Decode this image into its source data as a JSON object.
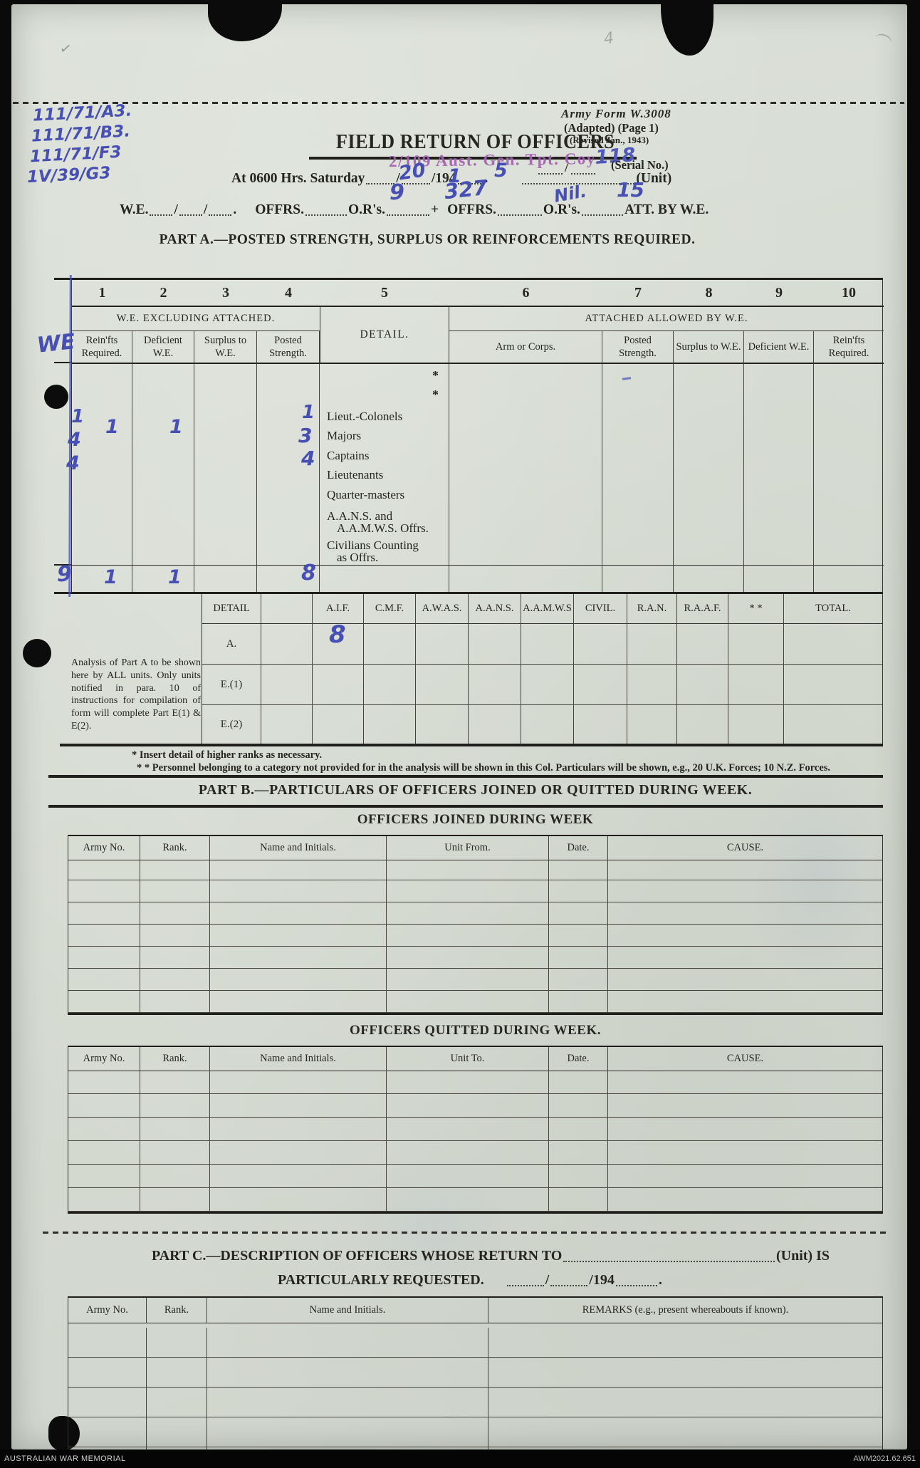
{
  "colors": {
    "paper": "#d8dcd3",
    "ink": "#26251f",
    "handwriting": "#4750b2",
    "stamp": "#a05fae"
  },
  "scan": {
    "footer_left": "AUSTRALIAN WAR MEMORIAL",
    "footer_right": "AWM2021.62.651"
  },
  "marks": {
    "check": "✓",
    "scribble": "4"
  },
  "header": {
    "form_number": "Army Form W.3008",
    "form_adapted": "(Adapted)  (Page 1)",
    "form_revised": "(Revised Jan., 1943)",
    "title": "FIELD RETURN OF OFFICERS",
    "stamp_unit": "2/109 Aust. Gen. Tpt. Coy.",
    "serial_label": "(Serial No.)",
    "date_prefix": "At 0600 Hrs. Saturday",
    "slash": "/",
    "year_prefix": "/194",
    "period": ".",
    "unit_label": "(Unit)",
    "we_label": "W.E.",
    "offrs_label": "OFFRS.",
    "ors_label": "O.R's.",
    "plus": "+",
    "att_label": "ATT. BY W.E."
  },
  "handwriting": {
    "refs": [
      "111/71/A3.",
      "111/71/B3.",
      "111/71/F3",
      "1V/39/G3"
    ],
    "serial": "118",
    "day": "20",
    "month": "1",
    "year": "5",
    "offrs": "9",
    "ors": "327",
    "att_offrs": "Nil.",
    "att_ors": "15",
    "we_label": "WE",
    "margin": [
      "1",
      "4",
      "4"
    ],
    "col1": "1",
    "col2": "1",
    "posted": [
      "1",
      "3",
      "4"
    ],
    "total_margin": "9",
    "total_col1": "1",
    "total_col2": "1",
    "total_posted": "8",
    "analysis_aif": "8"
  },
  "part_a": {
    "heading": "PART A.—POSTED STRENGTH, SURPLUS OR REINFORCEMENTS REQUIRED.",
    "col_numbers": [
      "1",
      "2",
      "3",
      "4",
      "5",
      "6",
      "7",
      "8",
      "9",
      "10"
    ],
    "group_we": "W.E. EXCLUDING ATTACHED.",
    "group_detail": "DETAIL.",
    "group_attached": "ATTACHED ALLOWED BY W.E.",
    "sub_left": [
      "Rein'fts Required.",
      "Deficient W.E.",
      "Surplus to W.E.",
      "Posted Strength."
    ],
    "sub_right": [
      "Arm or Corps.",
      "Posted Strength.",
      "Surplus to W.E.",
      "Deficient W.E.",
      "Rein'fts Required."
    ],
    "star": "*",
    "ranks": [
      "Lieut.-Colonels",
      "Majors",
      "Captains",
      "Lieutenants",
      "Quarter-masters"
    ],
    "aans_1": "A.A.N.S.  and",
    "aans_2": "A.A.M.W.S. Offrs.",
    "civ_1": "Civilians  Counting",
    "civ_2": "as Offrs."
  },
  "analysis": {
    "note": "Analysis of Part A to be shown here by ALL units. Only units notified in para. 10 of instructions for compilation of form will complete Part E(1) & E(2).",
    "headers": [
      "DETAIL",
      "",
      "A.I.F.",
      "C.M.F.",
      "A.W.A.S.",
      "A.A.N.S.",
      "A.A.M.W.S",
      "CIVIL.",
      "R.A.N.",
      "R.A.A.F.",
      "* *",
      "TOTAL."
    ],
    "rows": [
      "A.",
      "E.(1)",
      "E.(2)"
    ]
  },
  "footnotes": {
    "line1": "* Insert detail of higher ranks as necessary.",
    "line2": "* * Personnel belonging to a category not provided for in the analysis will be shown in this Col.  Particulars will be shown, e.g., 20 U.K. Forces; 10 N.Z. Forces."
  },
  "part_b": {
    "heading": "PART B.—PARTICULARS OF OFFICERS JOINED OR QUITTED DURING WEEK.",
    "joined_title": "OFFICERS JOINED DURING WEEK",
    "joined": {
      "headers": [
        "Army No.",
        "Rank.",
        "Name and Initials.",
        "Unit From.",
        "Date.",
        "CAUSE."
      ],
      "empty_rows": 7
    },
    "quitted_title": "OFFICERS QUITTED DURING WEEK.",
    "quitted": {
      "headers": [
        "Army No.",
        "Rank.",
        "Name and Initials.",
        "Unit To.",
        "Date.",
        "CAUSE."
      ],
      "empty_rows": 6
    }
  },
  "part_c": {
    "heading_1": "PART C.—DESCRIPTION OF OFFICERS WHOSE RETURN TO",
    "heading_1_suffix": "(Unit) IS",
    "heading_2": "PARTICULARLY REQUESTED.",
    "slash": "/",
    "year_prefix": "/194",
    "period": ".",
    "table": {
      "headers": [
        "Army No.",
        "Rank.",
        "Name and Initials.",
        "REMARKS (e.g., present whereabouts if known)."
      ],
      "empty_rows": 5
    }
  }
}
